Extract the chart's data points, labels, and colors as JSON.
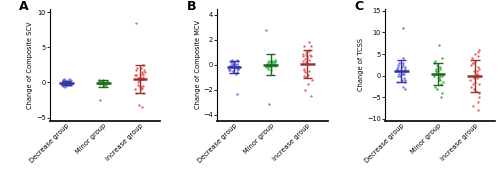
{
  "panel_labels": [
    "A",
    "B",
    "C"
  ],
  "groups": [
    "Decrease group",
    "Minor group",
    "Increase group"
  ],
  "colors": [
    "#7777EE",
    "#44BB44",
    "#EE6666"
  ],
  "dark_colors": [
    "#333399",
    "#226622",
    "#993333"
  ],
  "scv": {
    "ylabel": "Change of Composite SCV",
    "ylim": [
      -5.5,
      10.5
    ],
    "yticks": [
      -5,
      0,
      5,
      10
    ],
    "group_means": [
      -0.05,
      0.05,
      0.9
    ],
    "group_sds": [
      0.5,
      0.3,
      1.5
    ],
    "data": [
      [
        -0.5,
        -0.3,
        -0.1,
        -0.2,
        0.0,
        0.1,
        -0.1,
        -0.2,
        0.0,
        0.2,
        -0.3,
        -0.4,
        0.1,
        0.5,
        -0.5,
        0.3,
        -0.2,
        0.0,
        -0.1,
        0.2,
        -0.3,
        0.1,
        0.4,
        -0.2,
        0.0,
        -0.1,
        0.3,
        -0.4,
        0.2,
        -0.3,
        0.1,
        0.0,
        -0.2,
        0.3,
        -0.1,
        0.5,
        -0.6,
        0.4,
        -0.3
      ],
      [
        -0.1,
        0.0,
        0.1,
        0.2,
        -0.1,
        0.0,
        -0.2,
        0.1,
        0.3,
        -0.3,
        0.0,
        0.1,
        -0.2,
        0.2,
        0.0,
        0.1,
        -0.1,
        0.3,
        -0.2,
        0.0,
        0.1,
        -0.1,
        0.2,
        -0.3,
        0.0,
        0.1,
        -0.4,
        -2.5
      ],
      [
        0.5,
        1.0,
        1.5,
        -0.5,
        2.0,
        -1.0,
        0.8,
        1.2,
        -0.8,
        2.5,
        -1.5,
        0.3,
        1.8,
        -1.5,
        2.0,
        0.0,
        1.0,
        -0.3,
        0.7,
        1.5,
        -0.5,
        1.8,
        0.3,
        8.5,
        -3.5,
        0.5,
        -1.0,
        1.2,
        0.8,
        -0.7,
        -3.2,
        1.0
      ]
    ]
  },
  "mcv": {
    "ylabel": "Change of Composite MCV",
    "ylim": [
      -4.5,
      4.5
    ],
    "yticks": [
      -4,
      -2,
      0,
      2,
      4
    ],
    "group_means": [
      -0.15,
      0.1,
      0.7
    ],
    "group_sds": [
      0.5,
      0.55,
      0.55
    ],
    "data": [
      [
        -0.1,
        -0.3,
        0.0,
        0.2,
        -0.2,
        -0.1,
        0.1,
        -0.5,
        -0.7,
        0.3,
        -0.4,
        0.0,
        0.2,
        -0.3,
        -0.2,
        0.1,
        0.4,
        -0.6,
        -0.1,
        0.3,
        -0.2,
        -2.3,
        -0.3,
        0.4,
        -0.1,
        -0.2,
        0.0,
        -0.3,
        0.1,
        -0.4,
        0.2,
        -0.5
      ],
      [
        0.0,
        0.1,
        -0.1,
        0.2,
        0.3,
        -0.2,
        0.1,
        0.0,
        -0.1,
        0.4,
        -0.3,
        0.2,
        0.0,
        0.1,
        -0.2,
        0.3,
        -0.4,
        2.8,
        -3.1,
        0.1,
        0.2,
        -0.1,
        0.0,
        0.3,
        -0.2,
        0.1,
        0.2
      ],
      [
        0.5,
        0.8,
        1.0,
        -0.5,
        1.2,
        -0.8,
        0.7,
        1.5,
        -1.0,
        -0.3,
        0.9,
        -1.5,
        1.8,
        0.3,
        0.6,
        -0.6,
        1.1,
        -0.9,
        0.4,
        0.8,
        -1.2,
        1.5,
        0.2,
        -0.4,
        0.7,
        -2.5,
        -2.0
      ]
    ]
  },
  "tcss": {
    "ylabel": "Change of TCSS",
    "ylim": [
      -10.5,
      15.5
    ],
    "yticks": [
      -10,
      -5,
      0,
      5,
      10,
      15
    ],
    "group_means": [
      1.2,
      0.8,
      0.0
    ],
    "group_sds": [
      1.8,
      2.0,
      3.5
    ],
    "data": [
      [
        0.5,
        1.0,
        2.0,
        -1.0,
        3.0,
        1.5,
        1.5,
        -1.5,
        2.5,
        0.0,
        1.0,
        -0.5,
        2.0,
        -3.0,
        0.5,
        11.0,
        1.0,
        2.0,
        -1.0,
        0.5,
        1.5,
        0.0,
        3.0,
        -1.5,
        2.5,
        1.0,
        -2.5,
        4.0,
        0.5
      ],
      [
        0.0,
        0.5,
        1.0,
        -1.0,
        2.0,
        -2.0,
        1.5,
        -0.5,
        3.0,
        -3.0,
        0.5,
        1.0,
        -1.5,
        2.5,
        0.0,
        7.0,
        -5.0,
        1.0,
        -1.0,
        2.0,
        -2.5,
        0.5,
        1.5,
        0.0,
        -0.5,
        3.5,
        -4.0,
        4.0
      ],
      [
        0.0,
        -0.5,
        -1.0,
        -2.0,
        -3.0,
        -4.0,
        -5.0,
        -6.0,
        -7.0,
        1.0,
        2.0,
        3.0,
        4.0,
        5.0,
        6.0,
        0.5,
        -1.5,
        -2.5,
        -3.5,
        1.5,
        2.5,
        3.5,
        4.5,
        -0.5,
        0.5,
        1.0,
        -2.0,
        3.0,
        -8.0,
        5.5
      ]
    ]
  },
  "background_color": "#ffffff",
  "plot_bg": "#ffffff",
  "jitter_seed": 42
}
